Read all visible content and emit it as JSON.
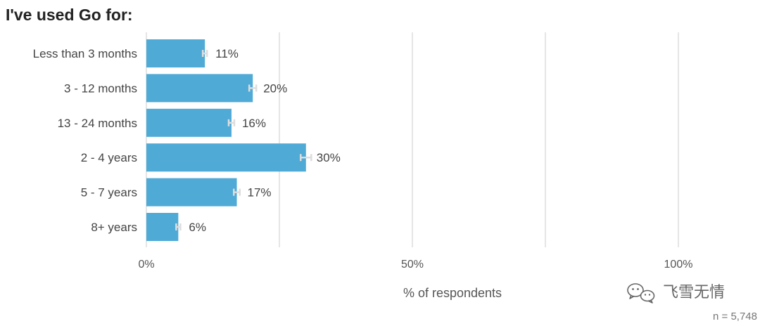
{
  "chart_data": {
    "type": "bar",
    "orientation": "horizontal",
    "title": "I've used Go for:",
    "categories": [
      "Less than 3 months",
      "3 - 12 months",
      "13 - 24 months",
      "2 - 4 years",
      "5 - 7 years",
      "8+ years"
    ],
    "values": [
      11,
      20,
      16,
      30,
      17,
      6
    ],
    "value_labels": [
      "11%",
      "20%",
      "16%",
      "30%",
      "17%",
      "6%"
    ],
    "error_bars": true,
    "xlabel": "% of respondents",
    "xlim": [
      0,
      100
    ],
    "xticks": [
      0,
      50,
      100
    ],
    "xtick_labels": [
      "0%",
      "50%",
      "100%"
    ],
    "gridlines": [
      0,
      25,
      50,
      75,
      100
    ],
    "grid": true,
    "bar_color": "#4FAAD6",
    "error_bar_color": "#DDDDDD",
    "sample_size": "n =  5,748"
  },
  "watermark": {
    "text": "飞雪无情",
    "icon": "wechat-icon"
  }
}
